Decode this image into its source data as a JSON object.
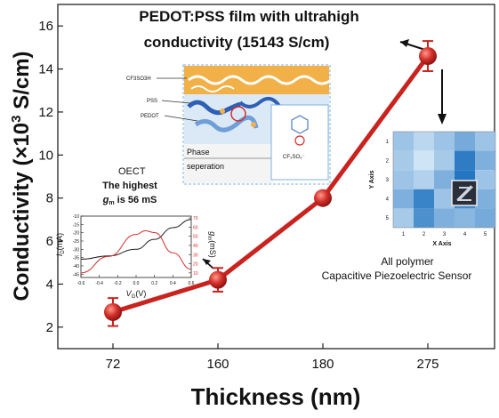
{
  "chart_data": {
    "type": "line",
    "title": "PEDOT:PSS film with ultrahigh",
    "subtitle": "conductivity (15143 S/cm)",
    "xlabel": "Thickness (nm)",
    "ylabel": "Conductivity (×10",
    "ylabel_sup": "3",
    "ylabel_tail": " S/cm)",
    "categories": [
      "72",
      "160",
      "180",
      "275"
    ],
    "values": [
      2.7,
      4.2,
      8.0,
      14.6
    ],
    "errors": [
      0.65,
      0.55,
      0.15,
      0.7
    ],
    "ylim": [
      1,
      17
    ],
    "yticks": [
      "2",
      "4",
      "6",
      "8",
      "10",
      "12",
      "14",
      "16"
    ],
    "grid": false,
    "colors": {
      "line": "#c8231e",
      "marker": "#d32f2a",
      "text": "#111111"
    }
  },
  "inset_structure": {
    "labels": [
      "CF3SO3H",
      "PSS",
      "PEDOT"
    ],
    "phase_label": "Phase",
    "phase_label_2": "seperation"
  },
  "inset_oect": {
    "title": "OECT",
    "note": "The highest",
    "note_var": "g",
    "note_sub": "m",
    "note_tail": " is 56 mS",
    "ylabel_left": "I",
    "ylabel_left_sub": "D",
    "ylabel_left_unit": "(mA)",
    "ylabel_right": "g",
    "ylabel_right_sub": "m",
    "ylabel_right_unit": "(mS)",
    "xlabel": "V",
    "xlabel_sub": "G",
    "xlabel_unit": "(V)",
    "xticks": [
      "-0.6",
      "-0.4",
      "-0.2",
      "0.0",
      "0.2",
      "0.4",
      "0.6"
    ],
    "yticks_left": [
      "-45",
      "-40",
      "-35",
      "-30",
      "-25",
      "-20",
      "-15",
      "-10"
    ],
    "yticks_right": [
      "70",
      "60",
      "50",
      "40",
      "30",
      "20",
      "10"
    ],
    "id_curve": {
      "x": [
        -0.6,
        -0.3,
        0.0,
        0.2,
        0.4,
        0.6
      ],
      "y": [
        -36,
        -34,
        -30,
        -24,
        -17,
        -12
      ]
    },
    "gm_curve": {
      "x": [
        -0.6,
        -0.3,
        0.0,
        0.1,
        0.2,
        0.4,
        0.6
      ],
      "y": [
        10,
        28,
        52,
        56,
        54,
        32,
        14
      ]
    },
    "ylim_left": [
      -10,
      -47
    ],
    "ylim_right": [
      5,
      72
    ],
    "colors": {
      "id": "#222222",
      "gm": "#d32f2a"
    }
  },
  "inset_sensor": {
    "title": "All polymer",
    "subtitle": "Capacitive Piezoelectric Sensor",
    "xlabel": "X Axis",
    "ylabel": "Y Axis",
    "xticks": [
      "1",
      "2",
      "3",
      "4",
      "5"
    ],
    "yticks": [
      "1",
      "2",
      "3",
      "4",
      "5"
    ],
    "grid": [
      [
        0.35,
        0.2,
        0.35,
        0.55,
        0.35
      ],
      [
        0.3,
        0.1,
        0.3,
        0.9,
        0.5
      ],
      [
        0.35,
        0.25,
        0.5,
        0.95,
        0.35
      ],
      [
        0.5,
        0.85,
        0.35,
        0.8,
        0.5
      ],
      [
        0.3,
        0.75,
        0.5,
        0.45,
        0.55
      ]
    ],
    "colors": {
      "low": "#e3f1fb",
      "high": "#1b6fbf"
    }
  }
}
